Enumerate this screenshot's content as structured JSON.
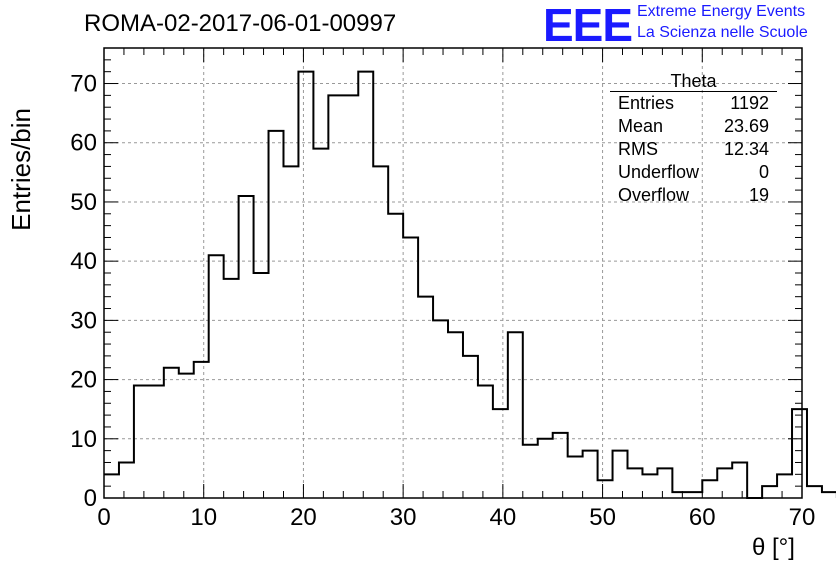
{
  "header": {
    "title": "ROMA-02-2017-06-01-00997"
  },
  "logo": {
    "text": "EEE",
    "line1": "Extreme Energy Events",
    "line2": "La Scienza nelle Scuole",
    "color": "#1a1aff"
  },
  "stats": {
    "title": "Theta",
    "rows": [
      {
        "key": "Entries",
        "value": "1192"
      },
      {
        "key": "Mean",
        "value": "23.69"
      },
      {
        "key": "RMS",
        "value": "12.34"
      },
      {
        "key": "Underflow",
        "value": "0"
      },
      {
        "key": "Overflow",
        "value": "19"
      }
    ]
  },
  "chart_data": {
    "type": "bar",
    "histogram_style": "step",
    "title": "ROMA-02-2017-06-01-00997",
    "xlabel": "θ [°]",
    "ylabel": "Entries/bin",
    "xlim": [
      0,
      70
    ],
    "ylim": [
      0,
      76
    ],
    "bin_width": 1.5,
    "bin_start": 0,
    "grid": true,
    "xticks": [
      0,
      10,
      20,
      30,
      40,
      50,
      60,
      70
    ],
    "yticks": [
      0,
      10,
      20,
      30,
      40,
      50,
      60,
      70
    ],
    "values": [
      4,
      6,
      19,
      19,
      22,
      21,
      23,
      41,
      37,
      51,
      38,
      62,
      56,
      72,
      59,
      68,
      68,
      72,
      56,
      48,
      44,
      34,
      30,
      28,
      24,
      19,
      15,
      28,
      9,
      10,
      11,
      7,
      8,
      3,
      8,
      5,
      4,
      5,
      1,
      1,
      3,
      5,
      6,
      0,
      2,
      4,
      15,
      2,
      1
    ],
    "line_color": "#000000"
  }
}
